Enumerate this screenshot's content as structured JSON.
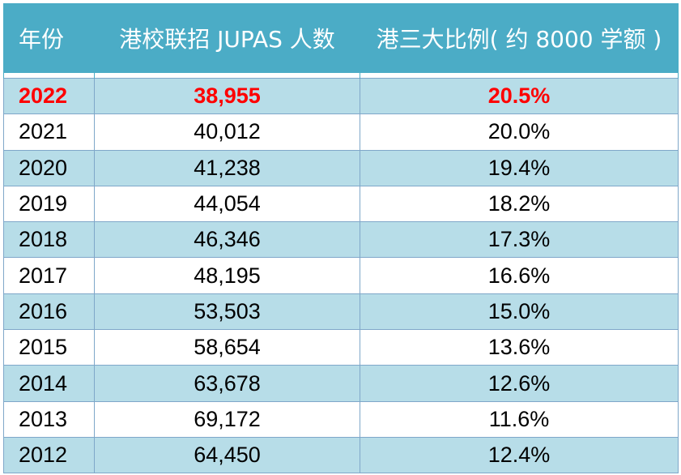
{
  "table": {
    "headers": [
      "年份",
      "港校联招 JUPAS 人数",
      "港三大比例( 约 8000 学额 )"
    ],
    "rows": [
      {
        "year": "2022",
        "count": "38,955",
        "ratio": "20.5%"
      },
      {
        "year": "2021",
        "count": "40,012",
        "ratio": "20.0%"
      },
      {
        "year": "2020",
        "count": "41,238",
        "ratio": "19.4%"
      },
      {
        "year": "2019",
        "count": "44,054",
        "ratio": "18.2%"
      },
      {
        "year": "2018",
        "count": "46,346",
        "ratio": "17.3%"
      },
      {
        "year": "2017",
        "count": "48,195",
        "ratio": "16.6%"
      },
      {
        "year": "2016",
        "count": "53,503",
        "ratio": "15.0%"
      },
      {
        "year": "2015",
        "count": "58,654",
        "ratio": "13.6%"
      },
      {
        "year": "2014",
        "count": "63,678",
        "ratio": "12.6%"
      },
      {
        "year": "2013",
        "count": "69,172",
        "ratio": "11.6%"
      },
      {
        "year": "2012",
        "count": "64,450",
        "ratio": "12.4%"
      }
    ],
    "colors": {
      "header_bg": "#4bacc6",
      "header_text": "#ffffff",
      "band_row": "#b7dde8",
      "highlight_text": "#ff0000",
      "border": "#7fa7c9"
    }
  }
}
